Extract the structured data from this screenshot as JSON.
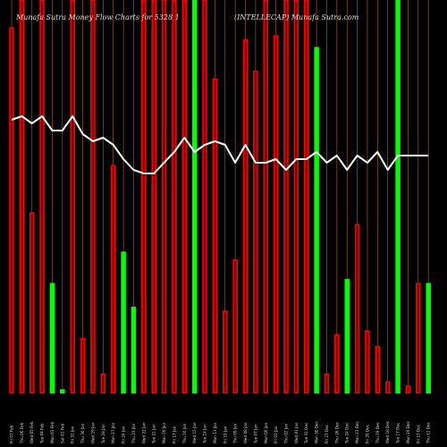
{
  "chart_data": {
    "type": "bar",
    "title_left": "Munafa Sutra Money Flow Charts for 5328 1",
    "title_right": "(INTELLECAP) Munafa Sutra.com",
    "colors": {
      "background": "#000000",
      "up": "#00ff00",
      "down": "#ff0000",
      "price_line": "#ffffff",
      "grid": "#b06a10"
    },
    "ylim": [
      0,
      100
    ],
    "price_ylim": [
      0,
      100
    ],
    "grid": "vertical",
    "categories": [
      "Fri 07 Feb",
      "Thu 06 Feb",
      "Wed 05 Feb",
      "Tue 04 Feb",
      "Mon 03 Feb",
      "Sat 01 Feb",
      "Fri 31 Jan",
      "Thu 30 Jan",
      "Wed 29 Jan",
      "Tue 28 Jan",
      "Mon 27 Jan",
      "Fri 24 Jan",
      "Thu 23 Jan",
      "Wed 22 Jan",
      "Tue 21 Jan",
      "Mon 20 Jan",
      "Fri 17 Jan",
      "Thu 16 Jan",
      "Wed 15 Jan",
      "Tue 14 Jan",
      "Mon 13 Jan",
      "Fri 10 Jan",
      "Thu 09 Jan",
      "Wed 08 Jan",
      "Tue 07 Jan",
      "Mon 06 Jan",
      "Fri 03 Jan",
      "Thu 02 Jan",
      "Wed 01 Jan",
      "Tue 31 Dec",
      "Mon 30 Dec",
      "Fri 27 Dec",
      "Thu 26 Dec",
      "Tue 24 Dec",
      "Mon 23 Dec",
      "Fri 20 Dec",
      "Thu 19 Dec",
      "Wed 18 Dec",
      "Tue 17 Dec",
      "Mon 16 Dec",
      "Fri 13 Dec",
      "Thu 12 Dec"
    ],
    "directions": [
      "down",
      "down",
      "down",
      "down",
      "up",
      "up",
      "down",
      "down",
      "down",
      "down",
      "down",
      "up",
      "up",
      "down",
      "down",
      "down",
      "down",
      "down",
      "up",
      "down",
      "down",
      "down",
      "down",
      "down",
      "down",
      "down",
      "down",
      "down",
      "down",
      "down",
      "up",
      "down",
      "down",
      "up",
      "down",
      "down",
      "down",
      "down",
      "up",
      "down",
      "down",
      "up"
    ],
    "values": [
      93,
      100,
      46,
      100,
      28,
      1,
      100,
      14,
      100,
      5,
      58,
      36,
      22,
      100,
      100,
      100,
      100,
      100,
      100,
      100,
      80,
      21,
      34,
      90,
      82,
      100,
      91,
      100,
      100,
      100,
      88,
      5,
      15,
      29,
      43,
      16,
      12,
      3,
      100,
      2,
      28,
      28
    ],
    "price": [
      69,
      70,
      68,
      70,
      66,
      66,
      70,
      65,
      63,
      64,
      62,
      58,
      55,
      54,
      54,
      57,
      60,
      64,
      60,
      62,
      63,
      62,
      57,
      62,
      57,
      57,
      58,
      55,
      58,
      58,
      60,
      57,
      59,
      55,
      59,
      57,
      60,
      55,
      59,
      59,
      59,
      59
    ]
  }
}
